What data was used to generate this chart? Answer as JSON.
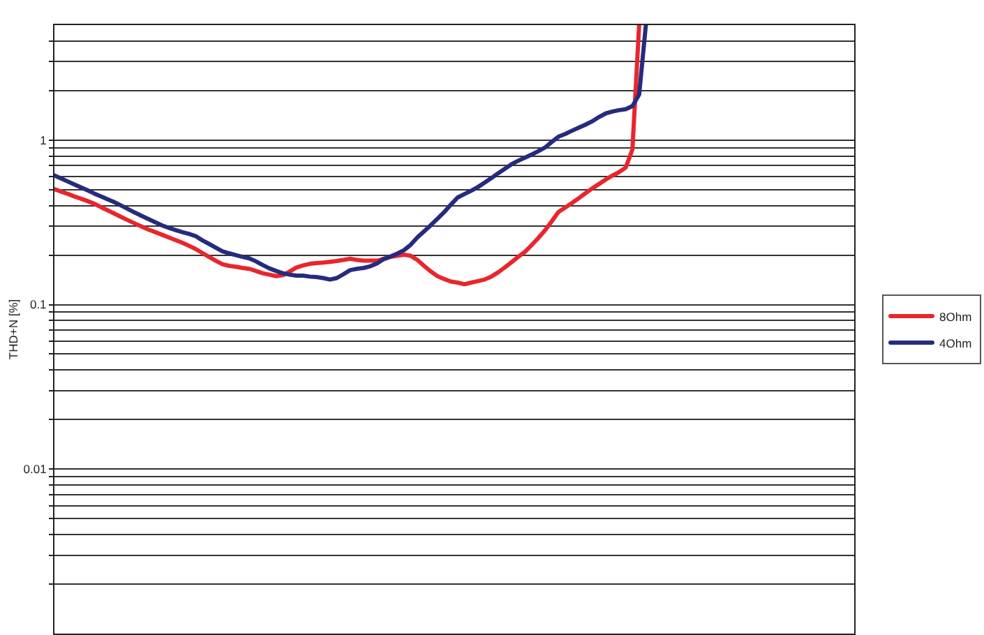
{
  "chart_data": {
    "type": "line",
    "ylabel": "THD+N [%]",
    "log": "y",
    "grid": "y",
    "legend": "right",
    "tick_labels": "y",
    "ylim": [
      0.001,
      5
    ],
    "yticks": [
      {
        "value": 0.002,
        "label": null
      },
      {
        "value": 0.003,
        "label": null
      },
      {
        "value": 0.004,
        "label": null
      },
      {
        "value": 0.005,
        "label": null
      },
      {
        "value": 0.006,
        "label": null
      },
      {
        "value": 0.007,
        "label": null
      },
      {
        "value": 0.008,
        "label": null
      },
      {
        "value": 0.009,
        "label": null
      },
      0.01,
      {
        "value": 0.02,
        "label": null
      },
      {
        "value": 0.03,
        "label": null
      },
      {
        "value": 0.04,
        "label": null
      },
      {
        "value": 0.05,
        "label": null
      },
      {
        "value": 0.06,
        "label": null
      },
      {
        "value": 0.07,
        "label": null
      },
      {
        "value": 0.08,
        "label": null
      },
      {
        "value": 0.09,
        "label": null
      },
      0.1,
      {
        "value": 0.2,
        "label": null
      },
      {
        "value": 0.3,
        "label": null
      },
      {
        "value": 0.4,
        "label": null
      },
      {
        "value": 0.5,
        "label": null
      },
      {
        "value": 0.6,
        "label": null
      },
      {
        "value": 0.7,
        "label": null
      },
      {
        "value": 0.8,
        "label": null
      },
      {
        "value": 0.9,
        "label": null
      },
      1,
      {
        "value": 2,
        "label": null
      },
      {
        "value": 3,
        "label": null
      },
      {
        "value": 4,
        "label": null
      }
    ],
    "categories": [
      null,
      null,
      null,
      null,
      null,
      null,
      null,
      null,
      null,
      null,
      null,
      null,
      null,
      null,
      null,
      null,
      null,
      null,
      null,
      null,
      null,
      null,
      null,
      null,
      null,
      null,
      null,
      null,
      null,
      null,
      null,
      null,
      null,
      null,
      null,
      null,
      null,
      null,
      null,
      null,
      null,
      null,
      null,
      null,
      null,
      null,
      null,
      null,
      null,
      null,
      null,
      null,
      null,
      null,
      null,
      null,
      null,
      null,
      null,
      null,
      null,
      null,
      null,
      null,
      null,
      null,
      null,
      null,
      null,
      null,
      null,
      null,
      null,
      null,
      null,
      null,
      null,
      null,
      null,
      null,
      null,
      null,
      null,
      null,
      null,
      null,
      null,
      null,
      null,
      null,
      null,
      null,
      null,
      null,
      null,
      null,
      null,
      null,
      null,
      null,
      null,
      null,
      null,
      null,
      null,
      null,
      null,
      null,
      null,
      null,
      null,
      null,
      null,
      null,
      null,
      null,
      null,
      null,
      null,
      null
    ],
    "series": [
      {
        "name": "8Ohm",
        "color": "#e8262d",
        "values": [
          0.503,
          0.486,
          0.471,
          0.454,
          0.44,
          0.425,
          0.409,
          0.39,
          0.373,
          0.356,
          0.34,
          0.325,
          0.311,
          0.298,
          0.286,
          0.276,
          0.266,
          0.256,
          0.247,
          0.238,
          0.228,
          0.218,
          0.206,
          0.195,
          0.185,
          0.176,
          0.172,
          0.17,
          0.167,
          0.165,
          0.16,
          0.155,
          0.152,
          0.149,
          0.151,
          0.159,
          0.168,
          0.173,
          0.177,
          0.179,
          0.18,
          0.182,
          0.184,
          0.187,
          0.19,
          0.187,
          0.185,
          0.185,
          0.185,
          0.19,
          0.195,
          0.198,
          0.201,
          0.198,
          0.187,
          0.172,
          0.159,
          0.149,
          0.143,
          0.138,
          0.136,
          0.133,
          0.136,
          0.139,
          0.142,
          0.148,
          0.157,
          0.168,
          0.181,
          0.195,
          0.209,
          0.23,
          0.254,
          0.283,
          0.321,
          0.366,
          0.389,
          0.414,
          0.443,
          0.475,
          0.508,
          0.54,
          0.575,
          0.608,
          0.638,
          0.681,
          0.877,
          5,
          null,
          null,
          null,
          null,
          null,
          null,
          null,
          null,
          null,
          null,
          null,
          null,
          null,
          null,
          null,
          null,
          null,
          null,
          null,
          null,
          null,
          null,
          null,
          null,
          null,
          null,
          null,
          null,
          null,
          null,
          null,
          null
        ]
      },
      {
        "name": "4Ohm",
        "color": "#262b7d",
        "values": [
          0.61,
          0.585,
          0.56,
          0.537,
          0.515,
          0.494,
          0.472,
          0.453,
          0.435,
          0.418,
          0.399,
          0.38,
          0.362,
          0.346,
          0.331,
          0.317,
          0.303,
          0.293,
          0.284,
          0.276,
          0.269,
          0.261,
          0.246,
          0.234,
          0.222,
          0.211,
          0.205,
          0.2,
          0.195,
          0.191,
          0.183,
          0.174,
          0.166,
          0.16,
          0.155,
          0.152,
          0.15,
          0.15,
          0.148,
          0.147,
          0.145,
          0.142,
          0.145,
          0.153,
          0.162,
          0.165,
          0.167,
          0.171,
          0.178,
          0.189,
          0.196,
          0.204,
          0.214,
          0.231,
          0.256,
          0.279,
          0.304,
          0.333,
          0.365,
          0.406,
          0.448,
          0.47,
          0.492,
          0.518,
          0.551,
          0.587,
          0.628,
          0.669,
          0.713,
          0.749,
          0.782,
          0.816,
          0.857,
          0.901,
          0.975,
          1.05,
          1.09,
          1.14,
          1.19,
          1.24,
          1.3,
          1.38,
          1.45,
          1.49,
          1.52,
          1.54,
          1.61,
          1.89,
          5,
          null,
          null,
          null,
          null,
          null,
          null,
          null,
          null,
          null,
          null,
          null,
          null,
          null,
          null,
          null,
          null,
          null,
          null,
          null,
          null,
          null,
          null,
          null,
          null,
          null,
          null,
          null,
          null,
          null,
          null,
          null
        ]
      }
    ]
  }
}
